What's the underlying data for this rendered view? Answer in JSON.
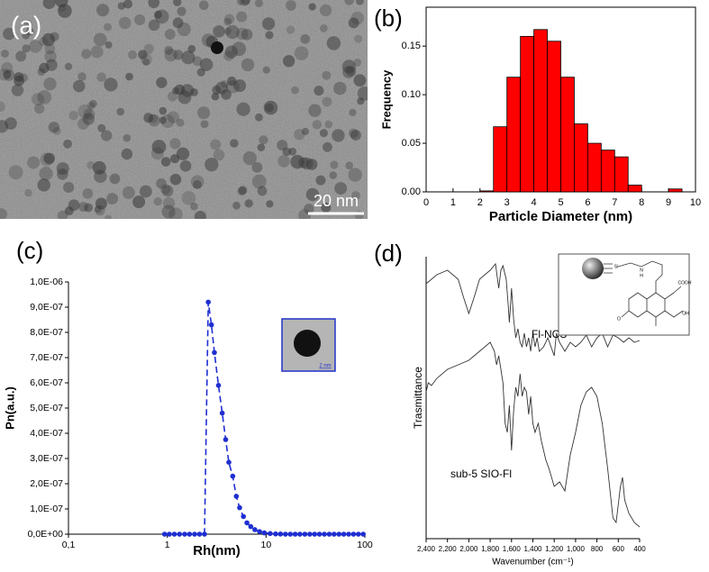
{
  "panel_a": {
    "label": "(a)",
    "scale_bar": "20 nm"
  },
  "chart_data": [
    {
      "type": "histogram",
      "label": "(b)",
      "xlabel": "Particle Diameter (nm)",
      "ylabel": "Frequency",
      "bins": [
        2.0,
        2.5,
        3.0,
        3.5,
        4.0,
        4.5,
        5.0,
        5.5,
        6.0,
        6.5,
        7.0,
        7.5,
        8.0,
        8.5,
        9.0,
        9.5
      ],
      "values": [
        0.001,
        0.067,
        0.118,
        0.16,
        0.167,
        0.155,
        0.118,
        0.07,
        0.05,
        0.043,
        0.036,
        0.007,
        0,
        0,
        0.003
      ],
      "color": "#ff0000",
      "xlim": [
        0,
        10
      ],
      "xticks": [
        0,
        1,
        2,
        3,
        4,
        5,
        6,
        7,
        8,
        9,
        10
      ],
      "ylim": [
        0,
        0.19
      ],
      "yticks": [
        {
          "value": 0,
          "label": "0.00"
        },
        {
          "value": 0.05,
          "label": "0.05"
        },
        {
          "value": 0.1,
          "label": "0.10"
        },
        {
          "value": 0.15,
          "label": "0.15"
        }
      ]
    },
    {
      "type": "line",
      "label": "(c)",
      "xlabel": "Rh(nm)",
      "ylabel": "Pn(a.u.)",
      "log_x": true,
      "linestyle": "dashed",
      "markers": true,
      "inset_label": "2 nm",
      "xlim": [
        0.1,
        100
      ],
      "xticks": [
        {
          "value": 0.1,
          "label": "0,1"
        },
        1,
        10,
        100
      ],
      "ylim": [
        0,
        1e-06
      ],
      "yticks": [
        {
          "value": 0,
          "label": "0,0E+00"
        },
        {
          "value": 1e-07,
          "label": "1,0E-07"
        },
        {
          "value": 2e-07,
          "label": "2,0E-07"
        },
        {
          "value": 3e-07,
          "label": "3,0E-07"
        },
        {
          "value": 4e-07,
          "label": "4,0E-07"
        },
        {
          "value": 5e-07,
          "label": "5,0E-07"
        },
        {
          "value": 6e-07,
          "label": "6,0E-07"
        },
        {
          "value": 7e-07,
          "label": "7,0E-07"
        },
        {
          "value": 8e-07,
          "label": "8,0E-07"
        },
        {
          "value": 9e-07,
          "label": "9,0E-07"
        },
        {
          "value": 1e-06,
          "label": "1,0E-06"
        }
      ],
      "series": [
        {
          "color": "#1f2fd0",
          "x": [
            0.94,
            1.05,
            1.18,
            1.33,
            1.5,
            1.68,
            1.89,
            2.12,
            2.38,
            2.6,
            2.8,
            3.0,
            3.3,
            3.6,
            3.9,
            4.2,
            4.6,
            5.0,
            5.4,
            5.9,
            6.4,
            7.0,
            7.7,
            8.6,
            9.6,
            11,
            12.5,
            14,
            15.7,
            17.6,
            19.7,
            22,
            24.7,
            27.7,
            31,
            34.7,
            38.9,
            43.6,
            48.8,
            54.7,
            61.2,
            68.6,
            76.8,
            86,
            96.3
          ],
          "values": [
            0,
            0,
            0,
            0,
            0,
            0,
            0,
            0,
            0,
            9.2e-07,
            8.3e-07,
            7.2e-07,
            5.9e-07,
            4.8e-07,
            3.75e-07,
            2.85e-07,
            2.3e-07,
            1.5e-07,
            1.05e-07,
            7e-08,
            4.5e-08,
            3e-08,
            1.8e-08,
            1e-08,
            5e-09,
            2.5e-09,
            1e-09,
            5e-10,
            0,
            0,
            0,
            0,
            0,
            0,
            0,
            0,
            0,
            0,
            0,
            0,
            0,
            0,
            0,
            0,
            0
          ]
        }
      ]
    },
    {
      "type": "line",
      "label": "(d)",
      "xlabel": "Wavenumber (cm⁻¹)",
      "ylabel": "Trasmittance",
      "markers": false,
      "xlim": [
        2400,
        400
      ],
      "xticks": [
        {
          "value": 2400,
          "label": "2,400"
        },
        {
          "value": 2200,
          "label": "2,200"
        },
        {
          "value": 2000,
          "label": "2,000"
        },
        {
          "value": 1800,
          "label": "1,800"
        },
        {
          "value": 1600,
          "label": "1,600"
        },
        {
          "value": 1400,
          "label": "1,400"
        },
        {
          "value": 1200,
          "label": "1,200"
        },
        {
          "value": 1000,
          "label": "1,000"
        },
        800,
        600,
        400
      ],
      "ylim": [
        0,
        313
      ],
      "inset_labels": [
        "Si",
        "N",
        "H",
        "COOH",
        "O",
        "OH"
      ],
      "series": [
        {
          "name": "Fl-NCS",
          "color": "#333333",
          "x": [
            2400,
            2300,
            2200,
            2100,
            2050,
            2000,
            1950,
            1900,
            1850,
            1800,
            1750,
            1720,
            1700,
            1680,
            1650,
            1630,
            1620,
            1610,
            1600,
            1580,
            1560,
            1540,
            1520,
            1500,
            1480,
            1460,
            1440,
            1420,
            1400,
            1380,
            1360,
            1340,
            1300,
            1260,
            1200,
            1180,
            1150,
            1100,
            1050,
            1000,
            950,
            900,
            850,
            800,
            750,
            700,
            650,
            600,
            550,
            500,
            450,
            400
          ],
          "values": [
            283,
            293,
            298,
            288,
            268,
            250,
            268,
            288,
            293,
            298,
            305,
            278,
            298,
            303,
            288,
            258,
            240,
            258,
            278,
            243,
            223,
            233,
            218,
            213,
            228,
            213,
            223,
            208,
            228,
            213,
            223,
            208,
            213,
            223,
            203,
            228,
            218,
            208,
            218,
            213,
            218,
            226,
            213,
            223,
            228,
            213,
            226,
            223,
            218,
            223,
            218,
            220
          ]
        },
        {
          "name": "sub-5 SIO-Fl",
          "color": "#333333",
          "x": [
            2400,
            2380,
            2350,
            2300,
            2200,
            2100,
            2000,
            1900,
            1800,
            1760,
            1740,
            1720,
            1700,
            1680,
            1660,
            1640,
            1620,
            1600,
            1580,
            1560,
            1540,
            1520,
            1500,
            1480,
            1460,
            1440,
            1420,
            1400,
            1380,
            1350,
            1320,
            1300,
            1280,
            1250,
            1200,
            1150,
            1100,
            1050,
            1000,
            950,
            900,
            850,
            800,
            750,
            700,
            650,
            620,
            600,
            580,
            560,
            540,
            500,
            450,
            400
          ],
          "values": [
            163,
            173,
            170,
            178,
            188,
            193,
            198,
            208,
            218,
            208,
            193,
            203,
            188,
            173,
            128,
            118,
            148,
            98,
            143,
            168,
            158,
            183,
            158,
            168,
            163,
            138,
            158,
            128,
            118,
            128,
            108,
            98,
            88,
            78,
            58,
            63,
            53,
            93,
            118,
            148,
            163,
            168,
            158,
            128,
            78,
            23,
            18,
            38,
            58,
            68,
            43,
            28,
            18,
            13
          ]
        }
      ]
    }
  ]
}
